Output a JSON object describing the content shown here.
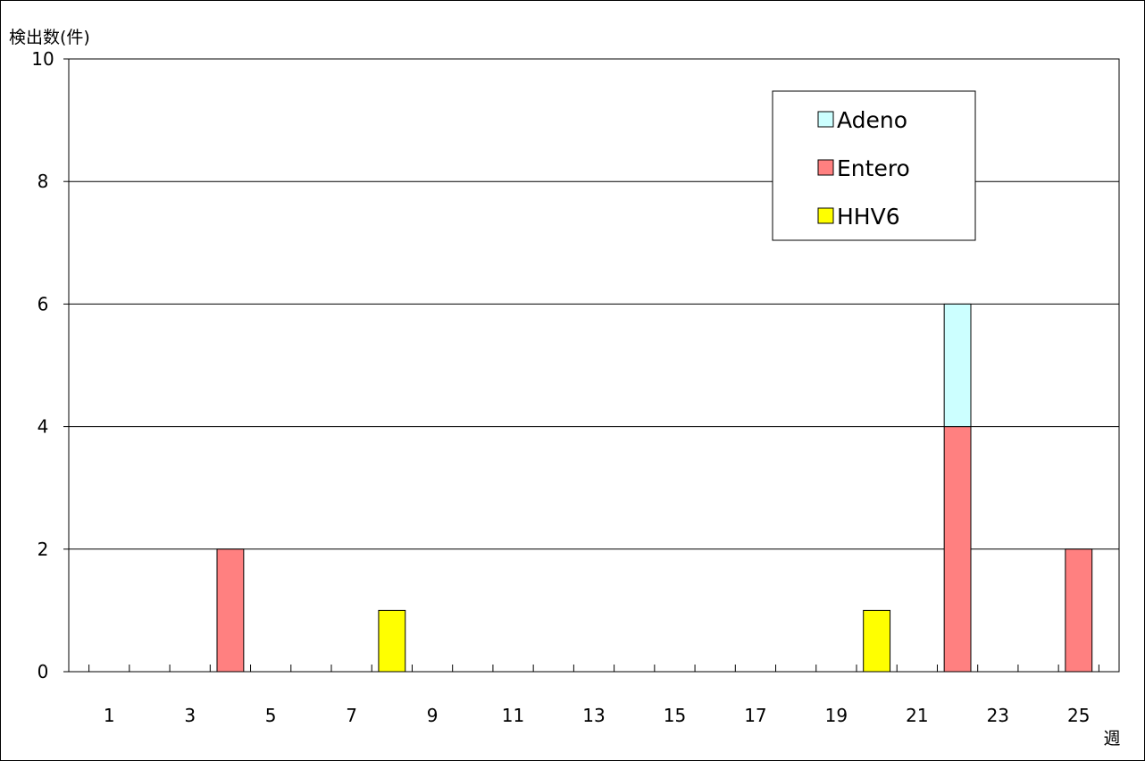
{
  "chart_data": {
    "type": "bar",
    "stacked": true,
    "ylabel": "検出数(件)",
    "xlabel": "週",
    "ylim": [
      0,
      10
    ],
    "yticks": [
      0,
      2,
      4,
      6,
      8,
      10
    ],
    "grid": true,
    "legend_position": "top-right",
    "categories": [
      1,
      2,
      3,
      4,
      5,
      6,
      7,
      8,
      9,
      10,
      11,
      12,
      13,
      14,
      15,
      16,
      17,
      18,
      19,
      20,
      21,
      22,
      23,
      24,
      25
    ],
    "xtick_labels": [
      "1",
      "3",
      "5",
      "7",
      "9",
      "11",
      "13",
      "15",
      "17",
      "19",
      "21",
      "23",
      "25"
    ],
    "series": [
      {
        "name": "Entero",
        "color": "#ff8080",
        "values": [
          0,
          0,
          0,
          2,
          0,
          0,
          0,
          0,
          0,
          0,
          0,
          0,
          0,
          0,
          0,
          0,
          0,
          0,
          0,
          0,
          0,
          4,
          0,
          0,
          2
        ]
      },
      {
        "name": "Adeno",
        "color": "#ccffff",
        "values": [
          0,
          0,
          0,
          0,
          0,
          0,
          0,
          0,
          0,
          0,
          0,
          0,
          0,
          0,
          0,
          0,
          0,
          0,
          0,
          0,
          0,
          2,
          0,
          0,
          0
        ]
      },
      {
        "name": "HHV6",
        "color": "#ffff00",
        "values": [
          0,
          0,
          0,
          0,
          0,
          0,
          0,
          1,
          0,
          0,
          0,
          0,
          0,
          0,
          0,
          0,
          0,
          0,
          0,
          1,
          0,
          0,
          0,
          0,
          0
        ]
      }
    ],
    "legend_order": [
      "Adeno",
      "Entero",
      "HHV6"
    ]
  }
}
